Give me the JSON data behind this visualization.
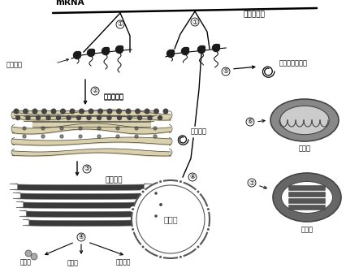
{
  "bg_color": "#ffffff",
  "labels": {
    "mRNA": "mRNA",
    "cytoplasm": "细胞质基质",
    "cytosol_protein": "胞质可溶性蛋白",
    "rough_er": "粗面内质网",
    "golgi": "高尔基体",
    "signal_seq1": "信号序列",
    "signal_seq2": "信号序列",
    "lysosome": "溶酶体",
    "membrane_protein": "膜蛋白",
    "secretory_protein": "分泌蛋白",
    "mitochondria": "线粒体",
    "chloroplast": "叶绿体",
    "nucleus": "细胞核",
    "c1a": "①",
    "c1b": "①",
    "c2": "②",
    "c3": "③",
    "c4": "④",
    "c5": "⑤",
    "c6": "⑥",
    "c7": "⑦",
    "c8": "⑧"
  },
  "colors": {
    "black": "#000000",
    "dg": "#444444",
    "mg": "#777777",
    "lg": "#aaaaaa",
    "er_fill": "#d8cfa8",
    "golgi_dark": "#3a3a3a",
    "mito_outer": "#888888",
    "mito_inner": "#cccccc",
    "chloro_outer": "#666666",
    "chloro_inner": "#999999",
    "nucleus_line": "#555555"
  }
}
